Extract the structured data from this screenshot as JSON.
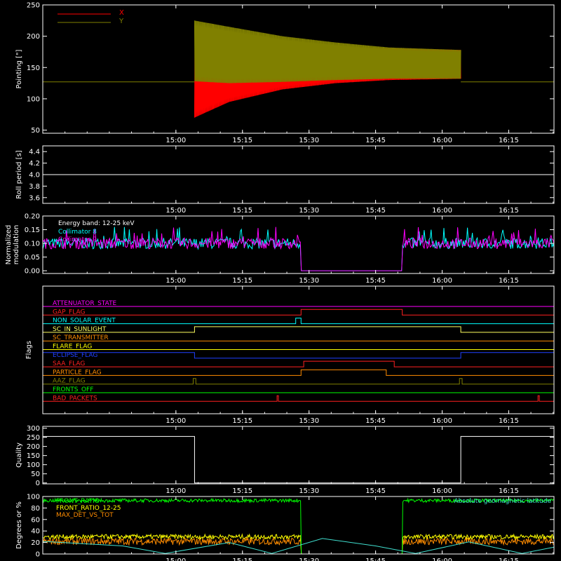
{
  "colors": {
    "axis": "#ffffff",
    "x_series": "#ff0000",
    "y_series": "#808000",
    "collimator8": "#00ffff",
    "collimator9": "#ff00ff",
    "front_ratio": "#00ff00",
    "front_ratio_12_25": "#ffff00",
    "max_det": "#ff8c00",
    "geomag": "#40e0d0",
    "quality": "#ffffff"
  },
  "time_axis": {
    "range_min": [
      14.5,
      16.42
    ],
    "ticks": [
      {
        "value": 15.0,
        "label": "15:00"
      },
      {
        "value": 15.25,
        "label": "15:15"
      },
      {
        "value": 15.5,
        "label": "15:30"
      },
      {
        "value": 15.75,
        "label": "15:45"
      },
      {
        "value": 16.0,
        "label": "16:00"
      },
      {
        "value": 16.25,
        "label": "16:15"
      }
    ]
  },
  "chart_data": [
    {
      "id": "pointing",
      "type": "line",
      "ylabel": "Pointing [\"]",
      "ylim": [
        45,
        250
      ],
      "yticks": [
        50,
        100,
        150,
        200,
        250
      ],
      "legend": [
        {
          "name": "X",
          "color": "#ff0000"
        },
        {
          "name": "Y",
          "color": "#808000"
        }
      ],
      "segments": {
        "flat_level": 127,
        "active_start": 15.07,
        "active_end": 16.07,
        "x_envelope": [
          {
            "t": 15.07,
            "lo": 70,
            "hi": 180
          },
          {
            "t": 15.2,
            "lo": 95,
            "hi": 175
          },
          {
            "t": 15.4,
            "lo": 115,
            "hi": 178
          },
          {
            "t": 15.6,
            "lo": 125,
            "hi": 180
          },
          {
            "t": 15.8,
            "lo": 130,
            "hi": 181
          },
          {
            "t": 16.07,
            "lo": 132,
            "hi": 178
          }
        ],
        "y_envelope": [
          {
            "t": 15.07,
            "lo": 128,
            "hi": 225
          },
          {
            "t": 15.2,
            "lo": 125,
            "hi": 215
          },
          {
            "t": 15.4,
            "lo": 127,
            "hi": 200
          },
          {
            "t": 15.6,
            "lo": 130,
            "hi": 190
          },
          {
            "t": 15.8,
            "lo": 132,
            "hi": 182
          },
          {
            "t": 16.07,
            "lo": 132,
            "hi": 178
          }
        ]
      }
    },
    {
      "id": "roll",
      "type": "line",
      "ylabel": "Roll period [s]",
      "ylim": [
        3.5,
        4.5
      ],
      "yticks": [
        3.6,
        3.8,
        4.0,
        4.2,
        4.4
      ],
      "yticklabels": [
        "3.6",
        "3.8",
        "4.0",
        "4.2",
        "4.4"
      ],
      "value": 4.0
    },
    {
      "id": "modulation",
      "type": "line",
      "ylabel": [
        "Normalized",
        "modulation"
      ],
      "ylim": [
        -0.01,
        0.2
      ],
      "yticks": [
        0.0,
        0.05,
        0.1,
        0.15,
        0.2
      ],
      "yticklabels": [
        "0.00",
        "0.05",
        "0.10",
        "0.15",
        "0.20"
      ],
      "annotation": "Energy band: 12-25 keV",
      "legend": [
        {
          "name": "Collimator 8",
          "color": "#00ffff"
        },
        {
          "name": "Collimator 9",
          "color": "#ff00ff"
        }
      ],
      "mean": 0.1,
      "gap": [
        15.47,
        15.85
      ]
    },
    {
      "id": "flags",
      "type": "line",
      "ylabel": "Flags",
      "flags": [
        {
          "name": "ATTENUATOR_STATE",
          "color": "#ff00ff",
          "steps": []
        },
        {
          "name": "GAP_FLAG",
          "color": "#ff2020",
          "steps": [
            [
              15.47,
              15.85
            ]
          ]
        },
        {
          "name": "NON_SOLAR_EVENT",
          "color": "#00ffff",
          "steps": [
            [
              15.45,
              15.47
            ]
          ]
        },
        {
          "name": "SC_IN_SUNLIGHT",
          "color": "#ffff60",
          "steps": [
            [
              15.07,
              16.07
            ]
          ]
        },
        {
          "name": "SC_TRANSMITTER",
          "color": "#ff8c00",
          "steps": []
        },
        {
          "name": "FLARE_FLAG",
          "color": "#ffff00",
          "steps": []
        },
        {
          "name": "ECLIPSE_FLAG",
          "color": "#2040ff",
          "steps": [
            [
              14.5,
              15.07
            ],
            [
              16.07,
              16.42
            ]
          ]
        },
        {
          "name": "SAA_FLAG",
          "color": "#ff2020",
          "steps": [
            [
              15.48,
              15.82
            ]
          ]
        },
        {
          "name": "PARTICLE_FLAG",
          "color": "#ff8c00",
          "steps": [
            [
              15.47,
              15.79
            ]
          ]
        },
        {
          "name": "AAZ_FLAG",
          "color": "#808000",
          "steps": [
            [
              15.065,
              15.075
            ],
            [
              16.065,
              16.075
            ]
          ]
        },
        {
          "name": "FRONTS_OFF",
          "color": "#00ff00",
          "steps": []
        },
        {
          "name": "BAD_PACKETS",
          "color": "#ff2020",
          "steps": [
            [
              15.38,
              15.385
            ],
            [
              16.36,
              16.365
            ]
          ]
        }
      ]
    },
    {
      "id": "quality",
      "type": "line",
      "ylabel": "Quality",
      "ylim": [
        -5,
        310
      ],
      "yticks": [
        0,
        50,
        100,
        150,
        200,
        250,
        300
      ],
      "high": 255,
      "low": 0,
      "high_intervals": [
        [
          14.5,
          15.07
        ],
        [
          16.07,
          16.42
        ]
      ]
    },
    {
      "id": "degrees",
      "type": "line",
      "ylabel": "Degrees or %",
      "ylim": [
        0,
        100
      ],
      "yticks": [
        0,
        20,
        40,
        60,
        80,
        100
      ],
      "legend": [
        {
          "name": "FRONT_RATIO",
          "color": "#00ff00"
        },
        {
          "name": "FRONT_RATIO_12-25",
          "color": "#ffff00"
        },
        {
          "name": "MAX_DET_VS_TOT",
          "color": "#ff8c00"
        }
      ],
      "right_label": {
        "name": "Absolute geomagnetic latitude",
        "color": "#40e0d0"
      },
      "gap": [
        15.47,
        15.85
      ],
      "front_ratio_level": 93,
      "front_ratio_12_25_level": 30,
      "max_det_level": 22,
      "geomag_curve": [
        {
          "t": 14.5,
          "v": 22
        },
        {
          "t": 14.8,
          "v": 14
        },
        {
          "t": 14.96,
          "v": 1
        },
        {
          "t": 15.2,
          "v": 20
        },
        {
          "t": 15.36,
          "v": 1
        },
        {
          "t": 15.55,
          "v": 27
        },
        {
          "t": 15.75,
          "v": 14
        },
        {
          "t": 15.9,
          "v": 1
        },
        {
          "t": 16.1,
          "v": 21
        },
        {
          "t": 16.3,
          "v": 1
        },
        {
          "t": 16.42,
          "v": 12
        }
      ]
    }
  ]
}
